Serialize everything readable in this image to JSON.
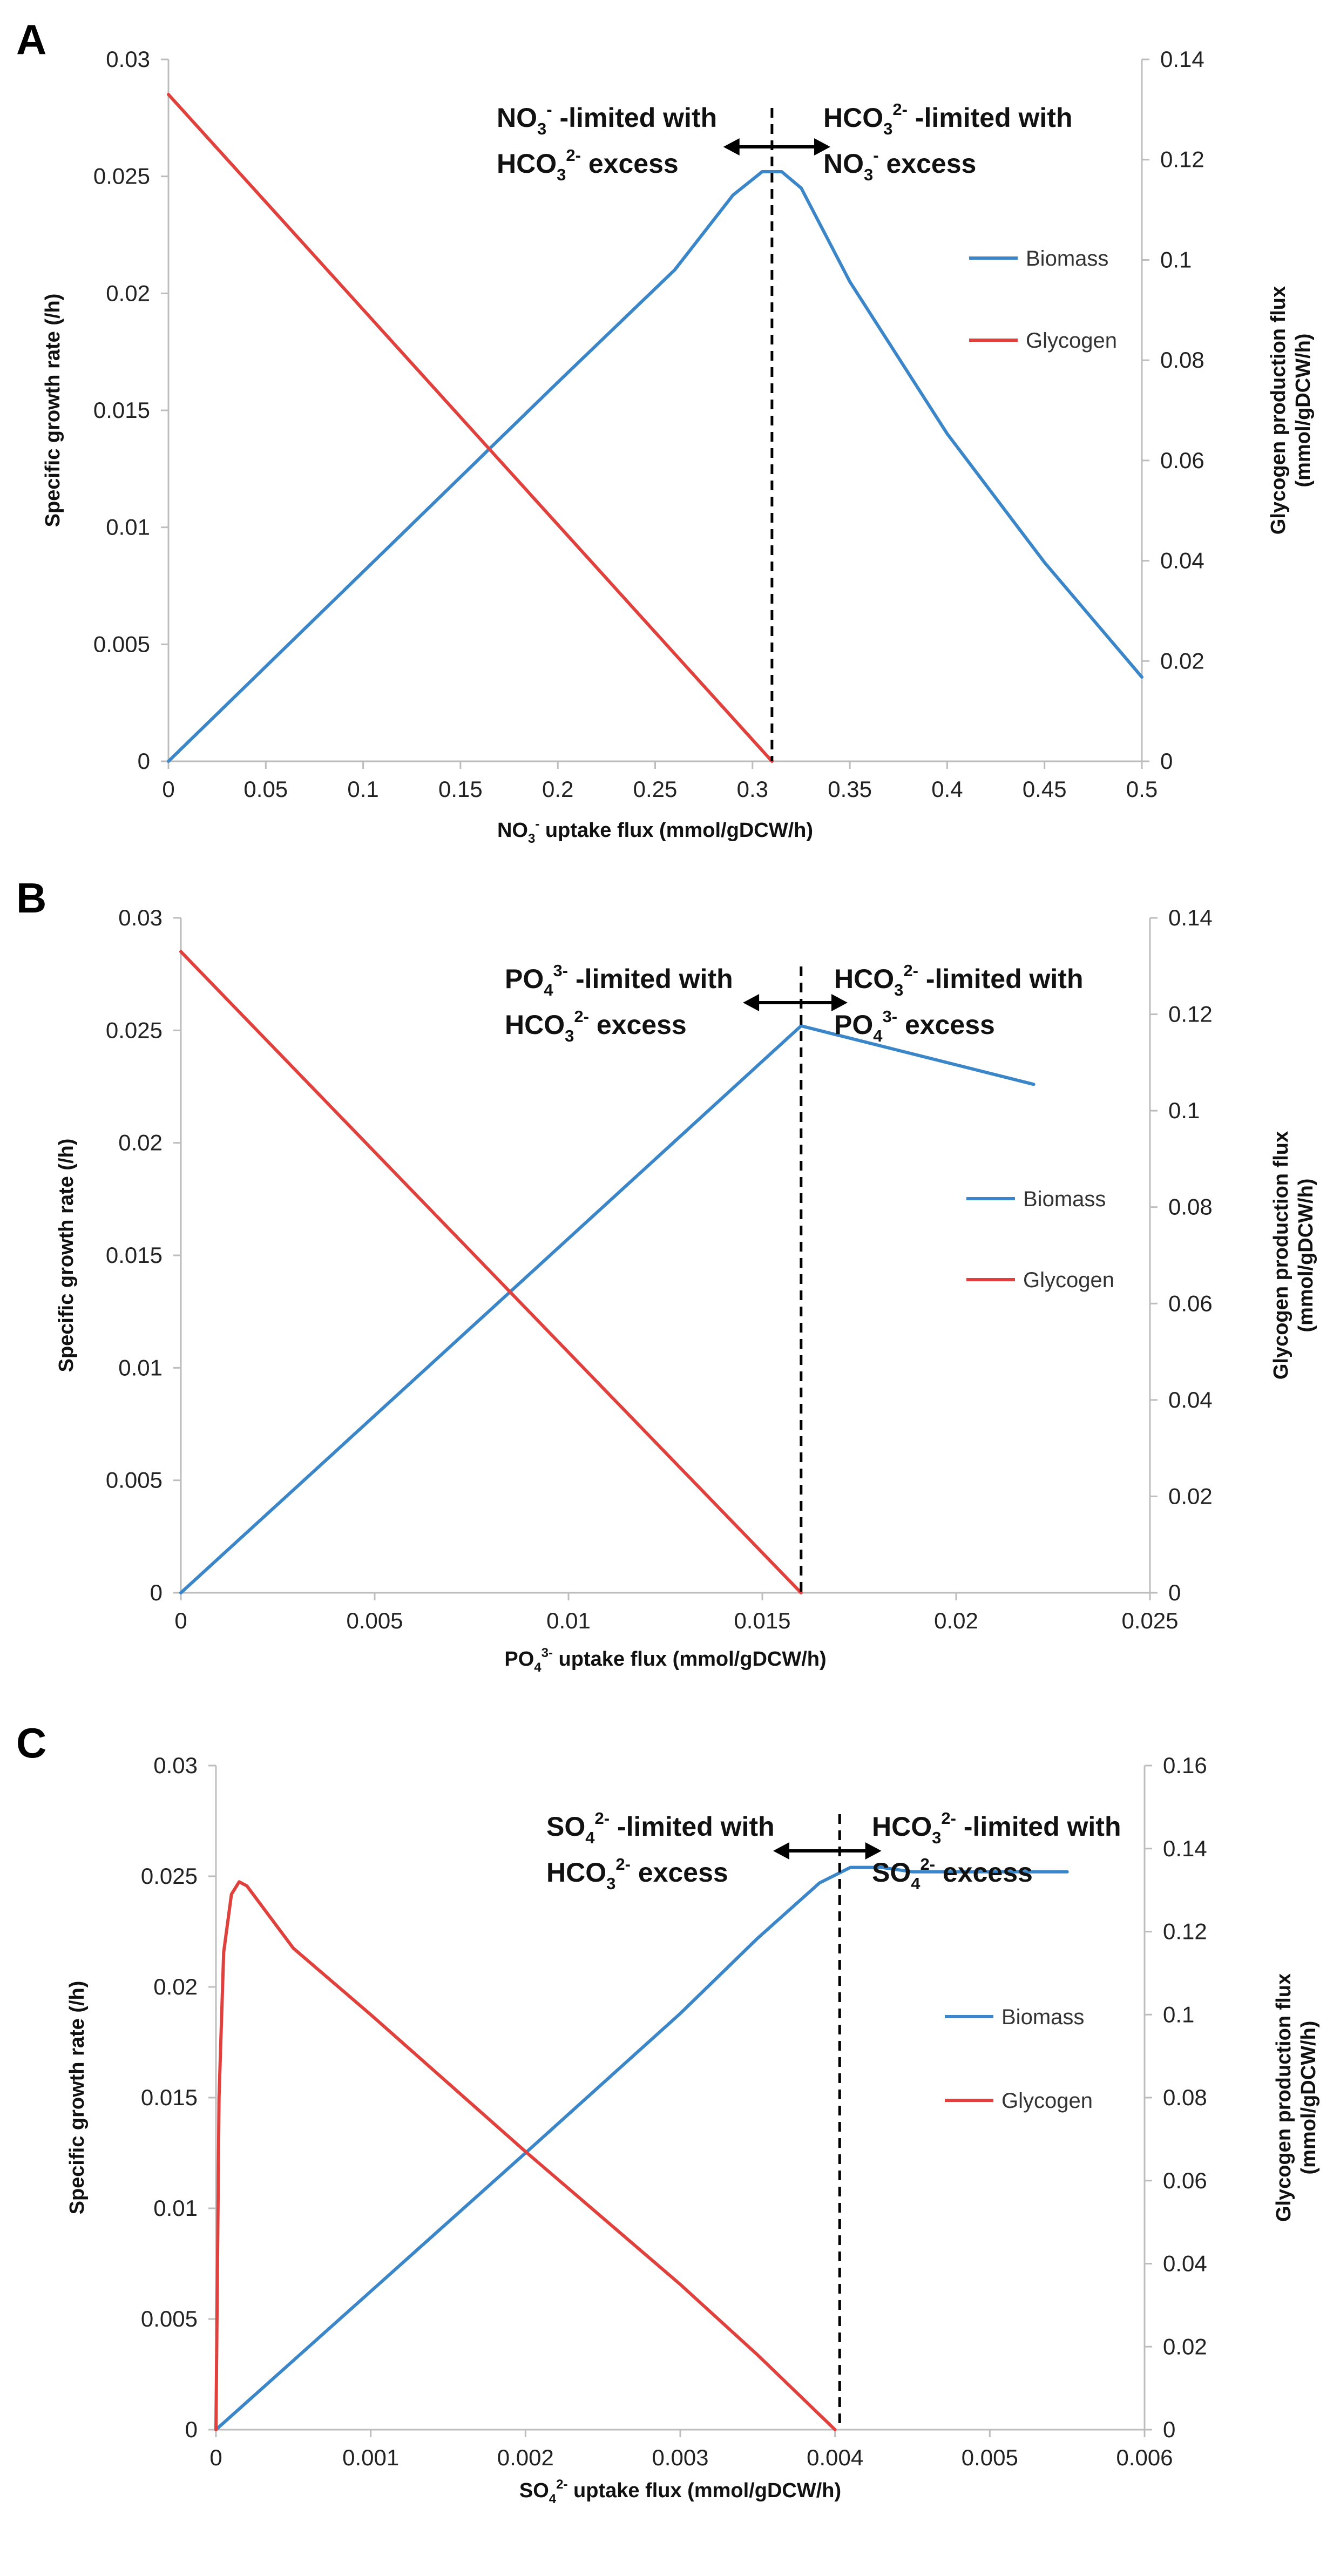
{
  "chart_data": [
    {
      "panel": "A",
      "type": "line",
      "xlabel": "NO3- uptake flux (mmol/gDCW/h)",
      "ylabel": "Specific growth rate (/h)",
      "y2label": "Glycogen production flux (mmol/gDCW/h)",
      "xlim": [
        0,
        0.5
      ],
      "ylim": [
        0,
        0.03
      ],
      "y2lim": [
        0,
        0.14
      ],
      "xticks": [
        "0",
        "0.05",
        "0.1",
        "0.15",
        "0.2",
        "0.25",
        "0.3",
        "0.35",
        "0.4",
        "0.45",
        "0.5"
      ],
      "yticks": [
        "0",
        "0.005",
        "0.01",
        "0.015",
        "0.02",
        "0.025",
        "0.03"
      ],
      "y2ticks": [
        "0",
        "0.02",
        "0.04",
        "0.06",
        "0.08",
        "0.1",
        "0.12",
        "0.14"
      ],
      "divider_x": 0.31,
      "arrow": [
        0.285,
        0.34
      ],
      "legend_location": "right",
      "annotations": {
        "left": {
          "line1": {
            "species": "NO3-",
            "text": "-limited with"
          },
          "line2": {
            "species": "HCO32-",
            "text": "excess"
          }
        },
        "right": {
          "line1": {
            "species": "HCO32-",
            "text": "-limited with"
          },
          "line2": {
            "species": "NO3-",
            "text": "excess"
          }
        }
      },
      "series": [
        {
          "name": "Biomass",
          "axis": "left",
          "color": "#3a86c8",
          "x": [
            0,
            0.1,
            0.2,
            0.26,
            0.29,
            0.305,
            0.315,
            0.325,
            0.35,
            0.4,
            0.45,
            0.5
          ],
          "y": [
            0,
            0.0081,
            0.0162,
            0.021,
            0.0242,
            0.0252,
            0.0252,
            0.0245,
            0.0205,
            0.014,
            0.0085,
            0.0036
          ]
        },
        {
          "name": "Glycogen",
          "axis": "right",
          "color": "#e0413d",
          "x": [
            0,
            0.31
          ],
          "y": [
            0.133,
            0.0
          ]
        }
      ]
    },
    {
      "panel": "B",
      "type": "line",
      "xlabel": "PO43- uptake flux (mmol/gDCW/h)",
      "ylabel": "Specific growth rate (/h)",
      "y2label": "Glycogen production flux (mmol/gDCW/h)",
      "xlim": [
        0,
        0.025
      ],
      "ylim": [
        0,
        0.03
      ],
      "y2lim": [
        0,
        0.14
      ],
      "xticks": [
        "0",
        "0.005",
        "0.01",
        "0.015",
        "0.02",
        "0.025"
      ],
      "yticks": [
        "0",
        "0.005",
        "0.01",
        "0.015",
        "0.02",
        "0.025",
        "0.03"
      ],
      "y2ticks": [
        "0",
        "0.02",
        "0.04",
        "0.06",
        "0.08",
        "0.1",
        "0.12",
        "0.14"
      ],
      "divider_x": 0.016,
      "arrow": [
        0.0145,
        0.0172
      ],
      "legend_location": "right",
      "annotations": {
        "left": {
          "line1": {
            "species": "PO43-",
            "text": "-limited with"
          },
          "line2": {
            "species": "HCO32-",
            "text": "excess"
          }
        },
        "right": {
          "line1": {
            "species": "HCO32-",
            "text": "-limited with"
          },
          "line2": {
            "species": "PO43-",
            "text": "excess"
          }
        }
      },
      "series": [
        {
          "name": "Biomass",
          "axis": "left",
          "color": "#3a86c8",
          "x": [
            0,
            0.016,
            0.022
          ],
          "y": [
            0,
            0.0252,
            0.0226
          ]
        },
        {
          "name": "Glycogen",
          "axis": "right",
          "color": "#e0413d",
          "x": [
            0,
            0.016
          ],
          "y": [
            0.133,
            0.0
          ]
        }
      ]
    },
    {
      "panel": "C",
      "type": "line",
      "xlabel": "SO42- uptake flux (mmol/gDCW/h)",
      "ylabel": "Specific growth rate (/h)",
      "y2label": "Glycogen production flux (mmol/gDCW/h)",
      "xlim": [
        0,
        0.006
      ],
      "ylim": [
        0,
        0.03
      ],
      "y2lim": [
        0,
        0.16
      ],
      "xticks": [
        "0",
        "0.001",
        "0.002",
        "0.003",
        "0.004",
        "0.005",
        "0.006"
      ],
      "yticks": [
        "0",
        "0.005",
        "0.01",
        "0.015",
        "0.02",
        "0.025",
        "0.03"
      ],
      "y2ticks": [
        "0",
        "0.02",
        "0.04",
        "0.06",
        "0.08",
        "0.1",
        "0.12",
        "0.14",
        "0.16"
      ],
      "divider_x": 0.00403,
      "arrow": [
        0.0036,
        0.0043
      ],
      "legend_location": "right",
      "annotations": {
        "left": {
          "line1": {
            "species": "SO42-",
            "text": "-limited with"
          },
          "line2": {
            "species": "HCO32-",
            "text": "excess"
          }
        },
        "right": {
          "line1": {
            "species": "HCO32-",
            "text": "-limited with"
          },
          "line2": {
            "species": "SO42-",
            "text": "excess"
          }
        }
      },
      "series": [
        {
          "name": "Biomass",
          "axis": "left",
          "color": "#3a86c8",
          "x": [
            0,
            0.001,
            0.002,
            0.003,
            0.0035,
            0.0039,
            0.0041,
            0.0043,
            0.0045,
            0.005,
            0.0055
          ],
          "y": [
            0,
            0.00625,
            0.0125,
            0.0188,
            0.0222,
            0.0247,
            0.0254,
            0.0254,
            0.0252,
            0.0252,
            0.0252
          ]
        },
        {
          "name": "Glycogen",
          "axis": "right",
          "color": "#e0413d",
          "x": [
            0,
            2e-05,
            5e-05,
            0.0001,
            0.00015,
            0.0002,
            0.0003,
            0.0005,
            0.001,
            0.002,
            0.003,
            0.0035,
            0.004
          ],
          "y": [
            0,
            0.08,
            0.115,
            0.129,
            0.132,
            0.131,
            0.126,
            0.116,
            0.1,
            0.067,
            0.035,
            0.018,
            0.0
          ]
        }
      ]
    }
  ]
}
